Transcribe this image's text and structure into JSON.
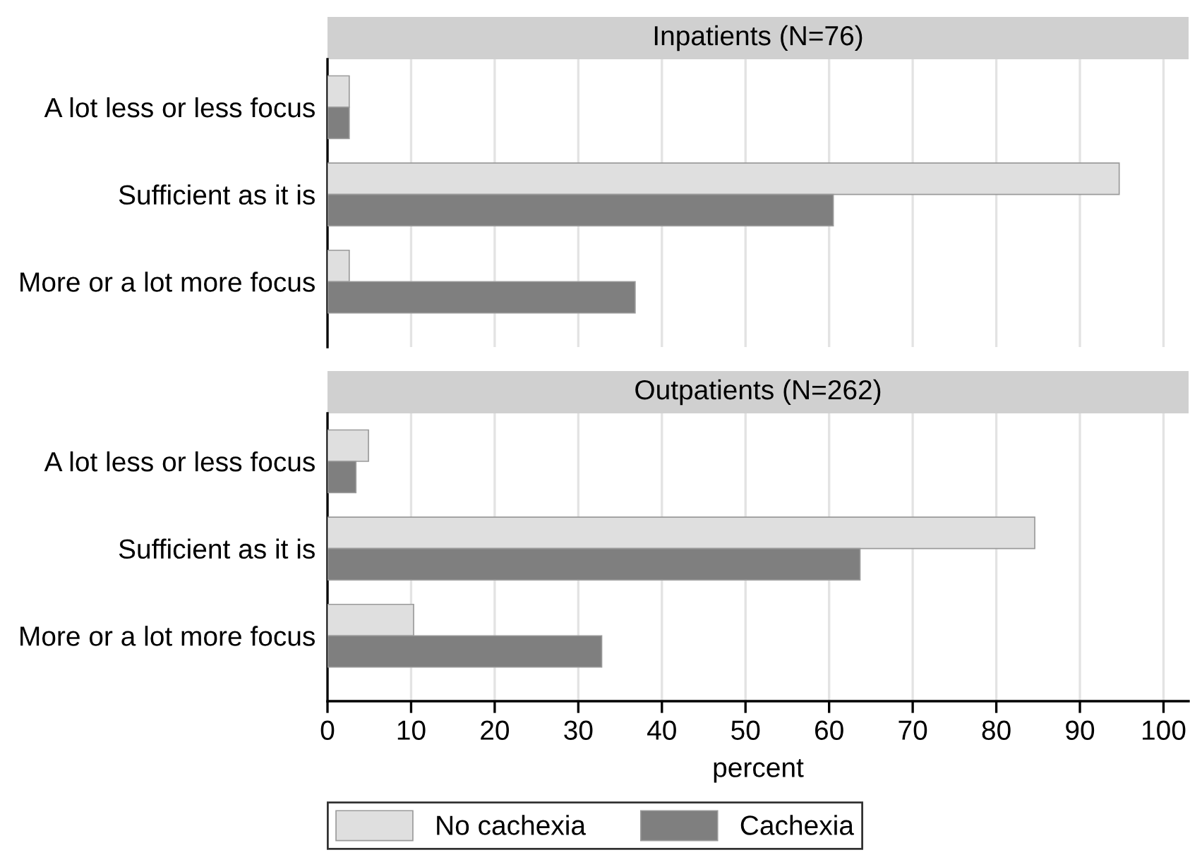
{
  "chart_data": [
    {
      "type": "bar",
      "orientation": "horizontal",
      "title": "Inpatients (N=76)",
      "categories": [
        "A lot less or less focus",
        "Sufficient as it is",
        "More or a lot more focus"
      ],
      "series": [
        {
          "name": "No cachexia",
          "color": "#dfdfdf",
          "values": [
            2.6,
            94.7,
            2.6
          ]
        },
        {
          "name": "Cachexia",
          "color": "#7f7f7f",
          "values": [
            2.6,
            60.5,
            36.8
          ]
        }
      ],
      "xticks": [
        0,
        10,
        20,
        30,
        40,
        50,
        60,
        70,
        80,
        90,
        100
      ],
      "grid": "x",
      "tick_labels": "y",
      "legend": "bottom"
    },
    {
      "type": "bar",
      "orientation": "horizontal",
      "title": "Outpatients (N=262)",
      "xlabel": "percent",
      "categories": [
        "A lot less or less focus",
        "Sufficient as it is",
        "More or a lot more focus"
      ],
      "series": [
        {
          "name": "No cachexia",
          "color": "#dfdfdf",
          "values": [
            4.9,
            84.6,
            10.3
          ]
        },
        {
          "name": "Cachexia",
          "color": "#7f7f7f",
          "values": [
            3.4,
            63.7,
            32.8
          ]
        }
      ],
      "xlim": [
        0,
        103
      ],
      "xticks": [
        0,
        10,
        20,
        30,
        40,
        50,
        60,
        70,
        80,
        90,
        100
      ],
      "grid": "x",
      "legend": "bottom"
    }
  ]
}
